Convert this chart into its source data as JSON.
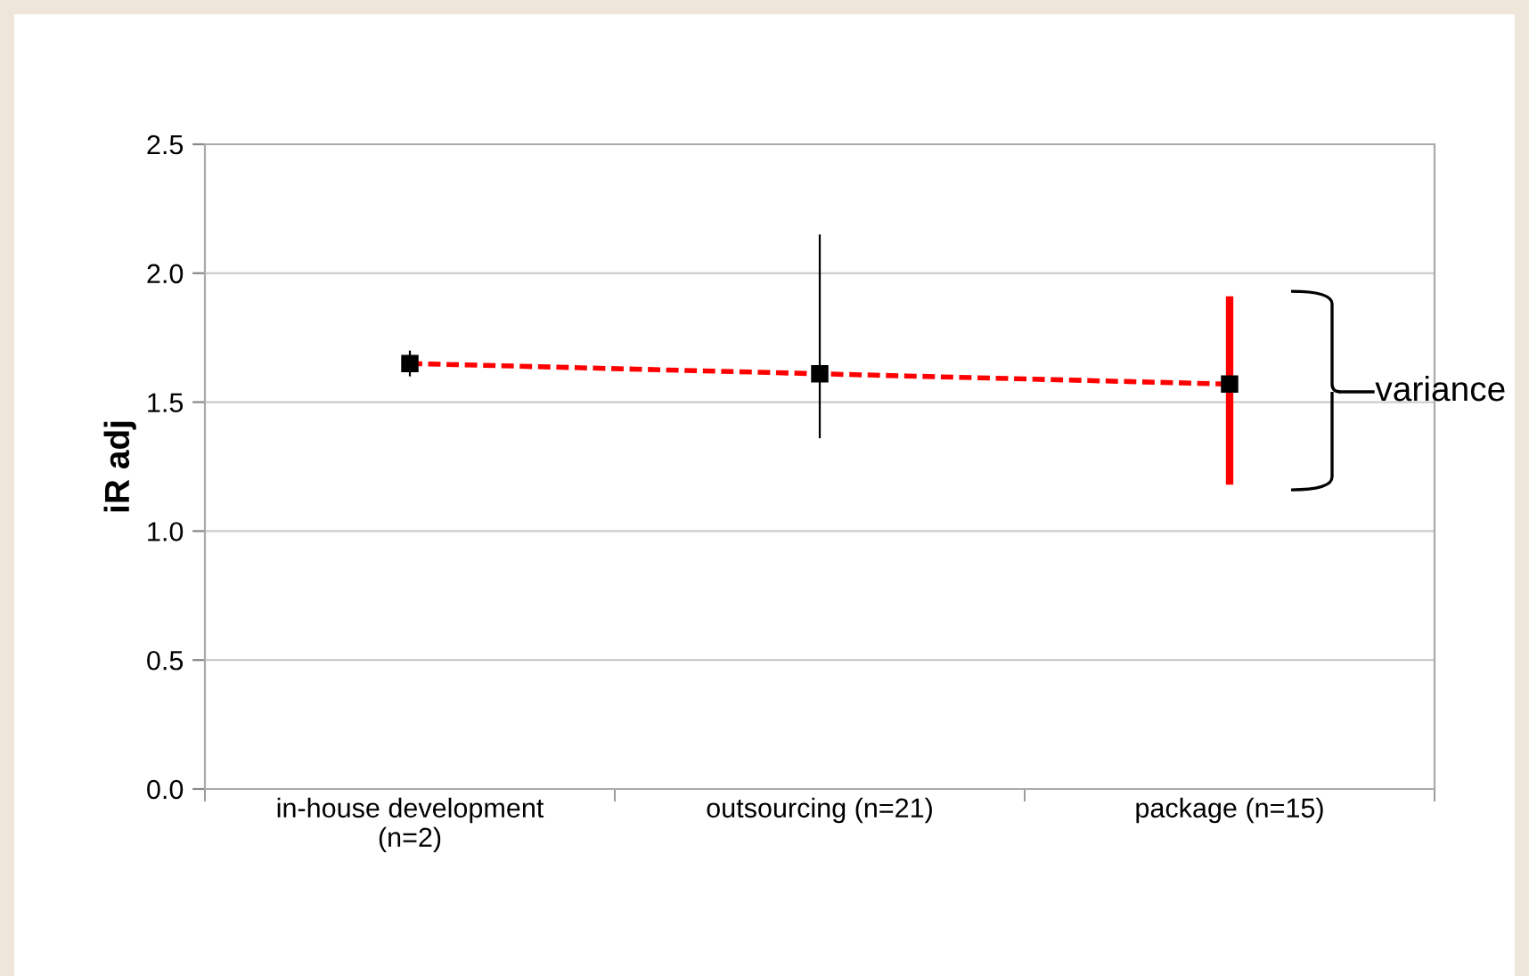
{
  "chart_data": {
    "type": "line",
    "ylabel": "iR adj",
    "categories": [
      "in-house development\n(n=2)",
      "outsourcing (n=21)",
      "package (n=15)"
    ],
    "series": [
      {
        "color": "#ff0000",
        "values": [
          1.65,
          1.61,
          1.57
        ],
        "errors": [
          [
            1.6,
            1.7
          ],
          [
            1.36,
            2.15
          ],
          [
            1.18,
            1.91
          ]
        ],
        "colors": [
          "#000000",
          "#000000",
          "#ff0000"
        ]
      }
    ],
    "ylim": [
      0,
      2.5
    ],
    "yticks": [
      {
        "value": 0,
        "label": "0.0"
      },
      {
        "value": 0.5,
        "label": "0.5"
      },
      {
        "value": 1.0,
        "label": "1.0"
      },
      {
        "value": 1.5,
        "label": "1.5"
      },
      {
        "value": 2.0,
        "label": "2.0"
      },
      {
        "value": 2.5,
        "label": "2.5"
      }
    ],
    "grid": "y",
    "line_style": "dashed",
    "marker": "square",
    "annotations": [
      "variance"
    ]
  }
}
